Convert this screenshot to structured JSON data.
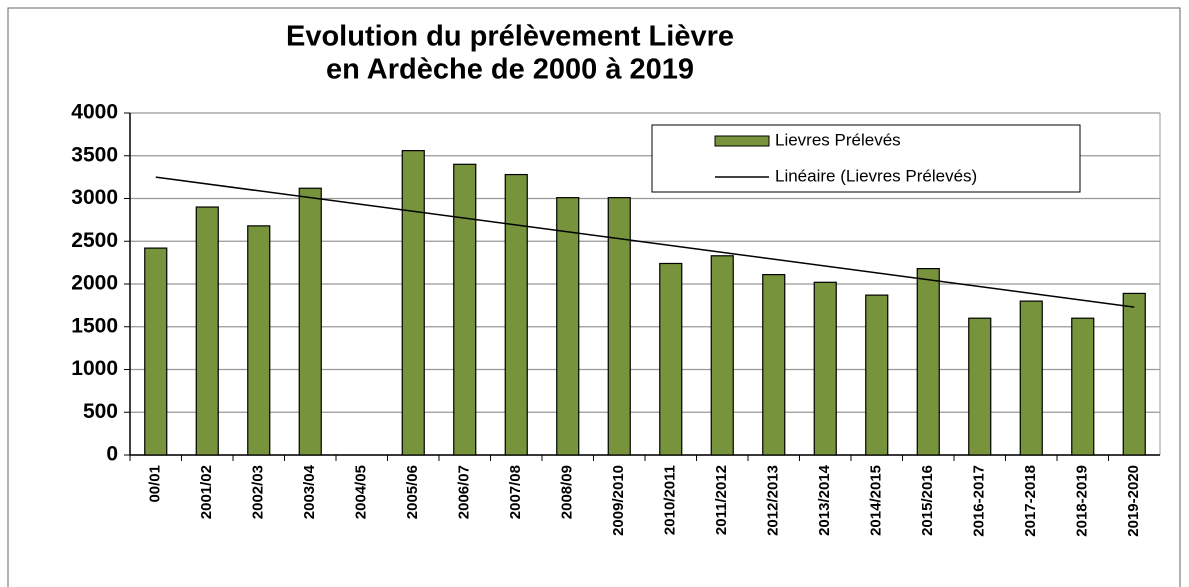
{
  "chart_data": {
    "type": "bar",
    "title": [
      "Evolution du prélèvement Lièvre",
      "en Ardèche de 2000 à 2019"
    ],
    "categories": [
      "00/01",
      "2001/02",
      "2002/03",
      "2003/04",
      "2004/05",
      "2005/06",
      "2006/07",
      "2007/08",
      "2008/09",
      "2009/2010",
      "2010/2011",
      "2011/2012",
      "2012/2013",
      "2013/2014",
      "2014/2015",
      "2015/2016",
      "2016-2017",
      "2017-2018",
      "2018-2019",
      "2019-2020"
    ],
    "series": [
      {
        "name": "Lievres Prélevés",
        "color": "#77933c",
        "values": [
          2420,
          2900,
          2680,
          3120,
          null,
          3560,
          3400,
          3280,
          3010,
          3010,
          2240,
          2330,
          2110,
          2020,
          1870,
          2180,
          1600,
          1800,
          1600,
          1890
        ]
      }
    ],
    "trend": {
      "name": "Linéaire (Lievres Prélevés)",
      "color": "#000000",
      "values": [
        3250,
        1730
      ]
    },
    "ylim": [
      0,
      4000
    ],
    "yticks": [
      0,
      500,
      1000,
      1500,
      2000,
      2500,
      3000,
      3500,
      4000
    ],
    "grid": true
  }
}
